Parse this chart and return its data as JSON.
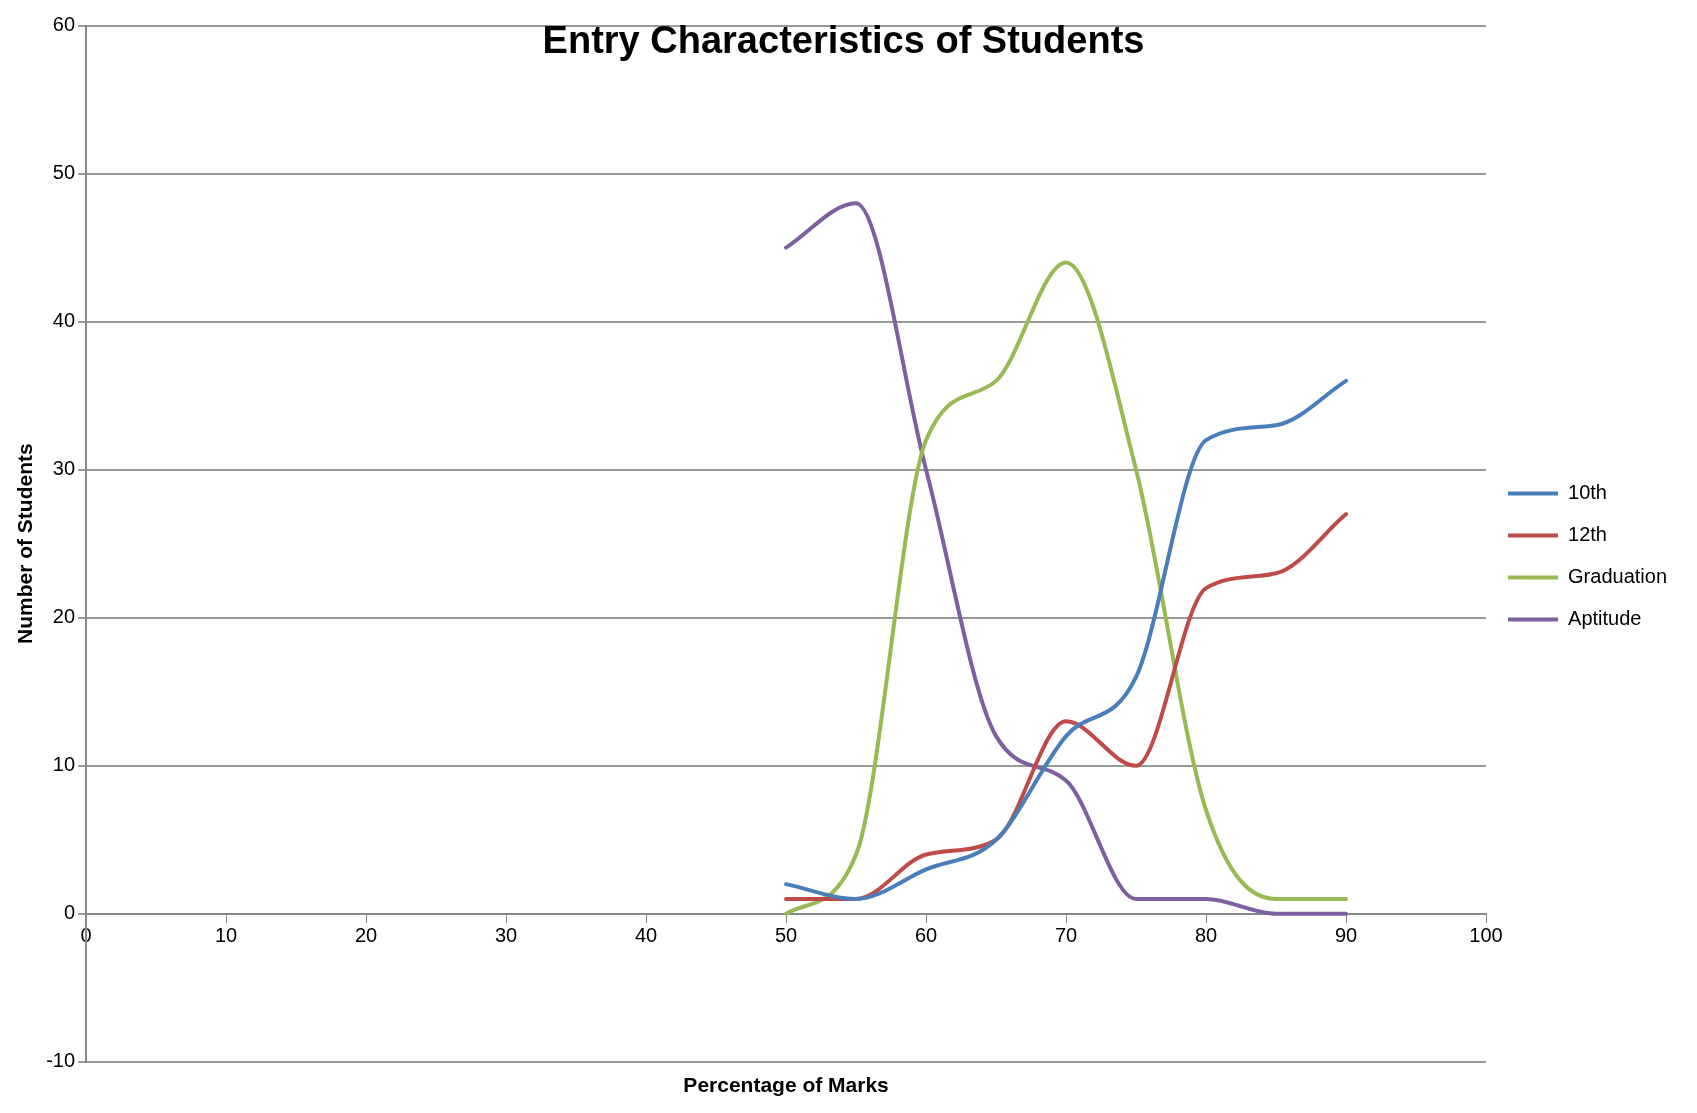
{
  "chart_data": {
    "type": "line",
    "title": "Entry Characteristics of Students",
    "xlabel": "Percentage of Marks",
    "ylabel": "Number of Students",
    "x": [
      50,
      55,
      60,
      65,
      70,
      75,
      80,
      85,
      90
    ],
    "series": [
      {
        "name": "10th",
        "color": "#4a7ebb",
        "values": [
          2,
          1,
          3,
          5,
          12,
          16,
          32,
          33,
          36
        ]
      },
      {
        "name": "12th",
        "color": "#be4b48",
        "values": [
          1,
          1,
          4,
          5,
          13,
          10,
          22,
          23,
          27
        ]
      },
      {
        "name": "Graduation",
        "color": "#98b954",
        "values": [
          0,
          4,
          32,
          36,
          44,
          30,
          7,
          1,
          1
        ]
      },
      {
        "name": "Aptitude",
        "color": "#7d60a0",
        "values": [
          45,
          48,
          30,
          12,
          9,
          1,
          1,
          0,
          0
        ]
      }
    ],
    "xlim": [
      0,
      100
    ],
    "xticks": [
      0,
      10,
      20,
      30,
      40,
      50,
      60,
      70,
      80,
      90,
      100
    ],
    "ylim": [
      -10,
      60
    ],
    "yticks": [
      -10,
      0,
      10,
      20,
      30,
      40,
      50,
      60
    ],
    "grid": "y",
    "legend": "right",
    "marker": "none",
    "line_style": "solid"
  }
}
